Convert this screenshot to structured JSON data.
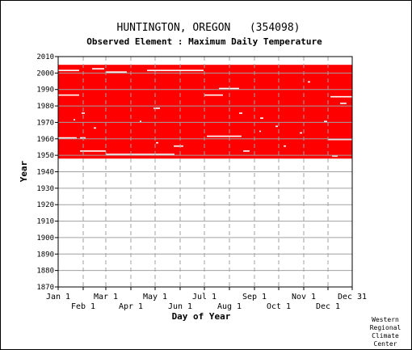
{
  "chart_data": {
    "type": "heatmap",
    "title": "HUNTINGTON, OREGON   (354098)",
    "subtitle": "Observed Element : Maximum Daily Temperature",
    "xlabel": "Day of Year",
    "ylabel": "Year",
    "xlim": [
      1,
      365
    ],
    "ylim": [
      1870,
      2010
    ],
    "y_ticks": [
      1870,
      1880,
      1890,
      1900,
      1910,
      1920,
      1930,
      1940,
      1950,
      1960,
      1970,
      1980,
      1990,
      2000,
      2010
    ],
    "x_ticks_top_row": [
      {
        "label": "Jan 1",
        "day": 1
      },
      {
        "label": "Mar 1",
        "day": 60
      },
      {
        "label": "May 1",
        "day": 121
      },
      {
        "label": "Jul 1",
        "day": 182
      },
      {
        "label": "Sep 1",
        "day": 244
      },
      {
        "label": "Nov 1",
        "day": 305
      },
      {
        "label": "Dec 31",
        "day": 365
      }
    ],
    "x_ticks_bottom_row": [
      {
        "label": "Feb 1",
        "day": 32
      },
      {
        "label": "Apr 1",
        "day": 91
      },
      {
        "label": "Jun 1",
        "day": 152
      },
      {
        "label": "Aug 1",
        "day": 213
      },
      {
        "label": "Oct 1",
        "day": 274
      },
      {
        "label": "Dec 1",
        "day": 335
      }
    ],
    "grid": true,
    "data_color": "#ff0000",
    "observed_years": [
      1948,
      2004
    ],
    "missing_segments": [
      {
        "year": 2001,
        "day_start": 1,
        "day_end": 27
      },
      {
        "year": 2001,
        "day_start": 111,
        "day_end": 181
      },
      {
        "year": 2002,
        "day_start": 43,
        "day_end": 58
      },
      {
        "year": 2000,
        "day_start": 60,
        "day_end": 86
      },
      {
        "year": 1986,
        "day_start": 1,
        "day_end": 27
      },
      {
        "year": 1990,
        "day_start": 200,
        "day_end": 225
      },
      {
        "year": 1986,
        "day_start": 182,
        "day_end": 205
      },
      {
        "year": 1985,
        "day_start": 338,
        "day_end": 365
      },
      {
        "year": 1981,
        "day_start": 350,
        "day_end": 358
      },
      {
        "year": 1978,
        "day_start": 119,
        "day_end": 127
      },
      {
        "year": 1975,
        "day_start": 225,
        "day_end": 229
      },
      {
        "year": 1960,
        "day_start": 1,
        "day_end": 24
      },
      {
        "year": 1961,
        "day_start": 185,
        "day_end": 228
      },
      {
        "year": 1959,
        "day_start": 335,
        "day_end": 365
      },
      {
        "year": 1955,
        "day_start": 144,
        "day_end": 156
      },
      {
        "year": 1950,
        "day_start": 60,
        "day_end": 145
      },
      {
        "year": 1949,
        "day_start": 340,
        "day_end": 347
      },
      {
        "year": 1952,
        "day_start": 230,
        "day_end": 238
      },
      {
        "year": 1966,
        "day_start": 45,
        "day_end": 48
      },
      {
        "year": 1970,
        "day_start": 102,
        "day_end": 104
      },
      {
        "year": 1972,
        "day_start": 251,
        "day_end": 255
      },
      {
        "year": 1967,
        "day_start": 270,
        "day_end": 273
      },
      {
        "year": 1963,
        "day_start": 300,
        "day_end": 303
      },
      {
        "year": 1970,
        "day_start": 330,
        "day_end": 334
      },
      {
        "year": 1957,
        "day_start": 122,
        "day_end": 125
      },
      {
        "year": 1964,
        "day_start": 250,
        "day_end": 252
      },
      {
        "year": 1955,
        "day_start": 280,
        "day_end": 283
      },
      {
        "year": 1971,
        "day_start": 20,
        "day_end": 22
      },
      {
        "year": 1994,
        "day_start": 310,
        "day_end": 313
      },
      {
        "year": 1952,
        "day_start": 28,
        "day_end": 60
      },
      {
        "year": 1960,
        "day_start": 28,
        "day_end": 35
      },
      {
        "year": 1975,
        "day_start": 30,
        "day_end": 34
      }
    ],
    "credit": [
      "Western",
      "Regional",
      "Climate",
      "Center"
    ]
  }
}
